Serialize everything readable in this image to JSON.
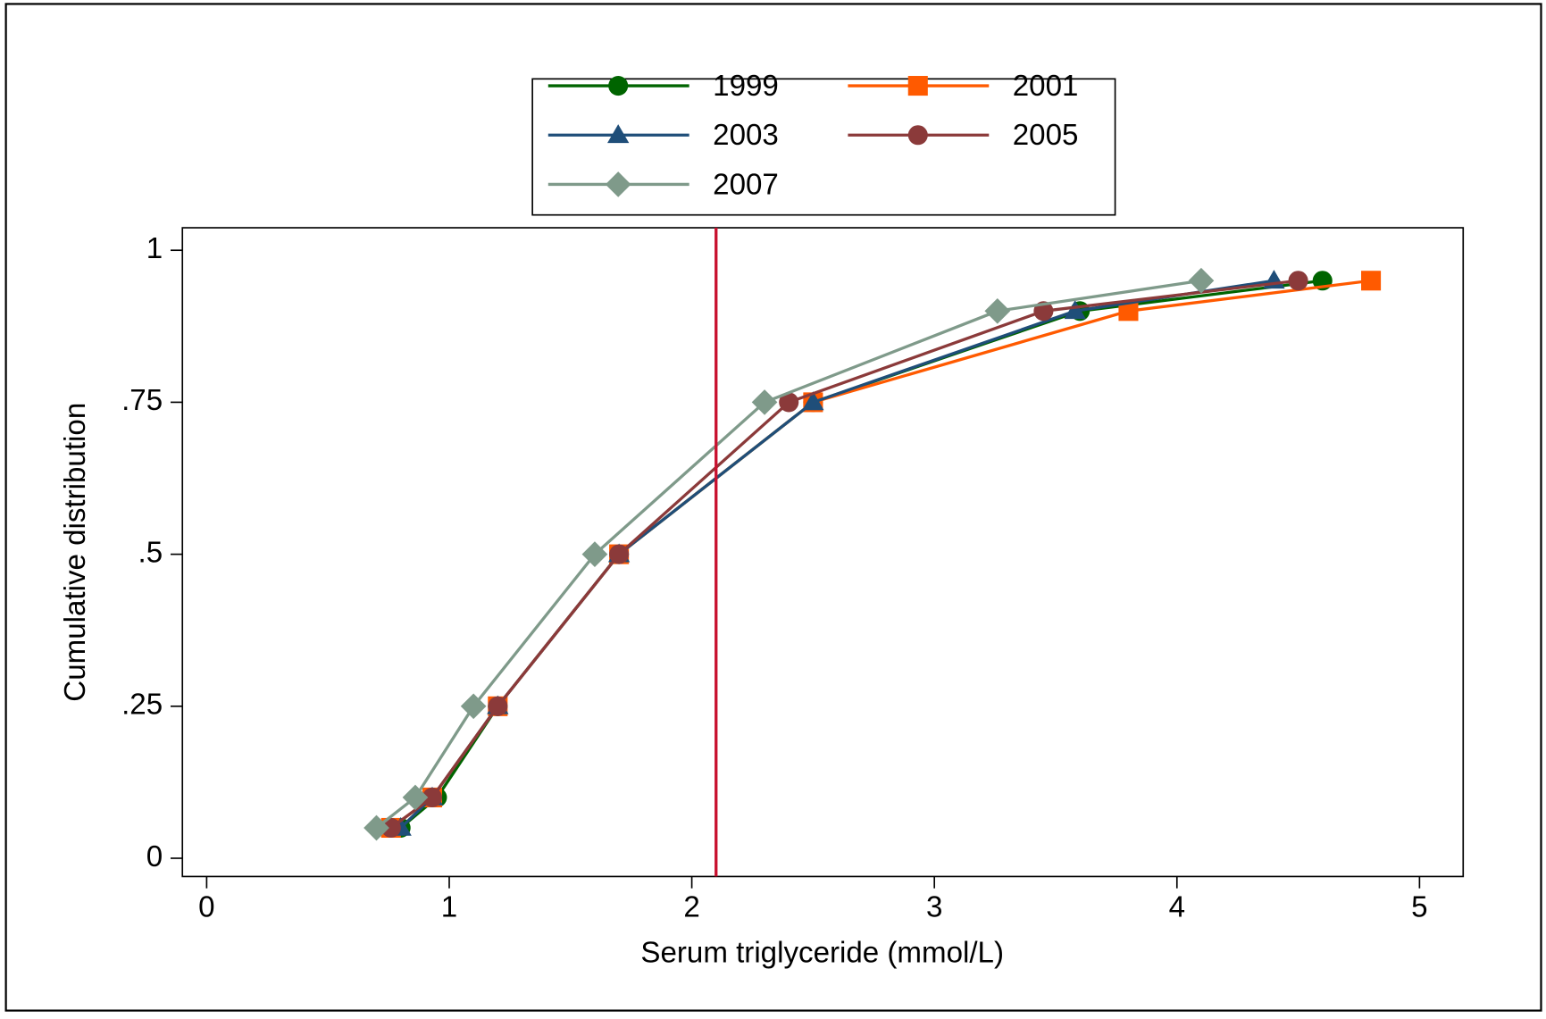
{
  "chart_data": {
    "type": "line",
    "xlabel": "Serum triglyceride (mmol/L)",
    "ylabel": "Cumulative distribution",
    "xlim": [
      -0.1,
      5.18
    ],
    "ylim": [
      -0.03,
      1.037
    ],
    "xticks": [
      0,
      1,
      2,
      3,
      4,
      5
    ],
    "yticks": [
      0,
      {
        "value": 0.25,
        "label": ".25"
      },
      {
        "value": 0.5,
        "label": ".5"
      },
      {
        "value": 0.75,
        "label": ".75"
      },
      1
    ],
    "grid": false,
    "legend": "top",
    "reference_line": {
      "x": 2.1,
      "color": "#c8102e"
    },
    "series": [
      {
        "name": "1999",
        "color": "#006400",
        "marker": "circle",
        "x": [
          0.8,
          0.95,
          1.2,
          1.7,
          2.5,
          3.6,
          4.6
        ],
        "values": [
          0.05,
          0.1,
          0.25,
          0.5,
          0.75,
          0.9,
          0.95
        ]
      },
      {
        "name": "2001",
        "color": "#ff5a00",
        "marker": "square",
        "x": [
          0.76,
          0.93,
          1.2,
          1.7,
          2.5,
          3.8,
          4.8
        ],
        "values": [
          0.05,
          0.1,
          0.25,
          0.5,
          0.75,
          0.9,
          0.95
        ]
      },
      {
        "name": "2003",
        "color": "#1f4e79",
        "marker": "triangle",
        "x": [
          0.8,
          0.93,
          1.2,
          1.7,
          2.5,
          3.58,
          4.4
        ],
        "values": [
          0.05,
          0.1,
          0.25,
          0.5,
          0.75,
          0.9,
          0.95
        ]
      },
      {
        "name": "2005",
        "color": "#8b3a3a",
        "marker": "circle",
        "x": [
          0.76,
          0.93,
          1.2,
          1.7,
          2.4,
          3.45,
          4.5
        ],
        "values": [
          0.05,
          0.1,
          0.25,
          0.5,
          0.75,
          0.9,
          0.95
        ]
      },
      {
        "name": "2007",
        "color": "#7f9a8a",
        "marker": "diamond",
        "x": [
          0.7,
          0.86,
          1.1,
          1.6,
          2.3,
          3.26,
          4.1
        ],
        "values": [
          0.05,
          0.1,
          0.25,
          0.5,
          0.75,
          0.9,
          0.95
        ]
      }
    ]
  }
}
